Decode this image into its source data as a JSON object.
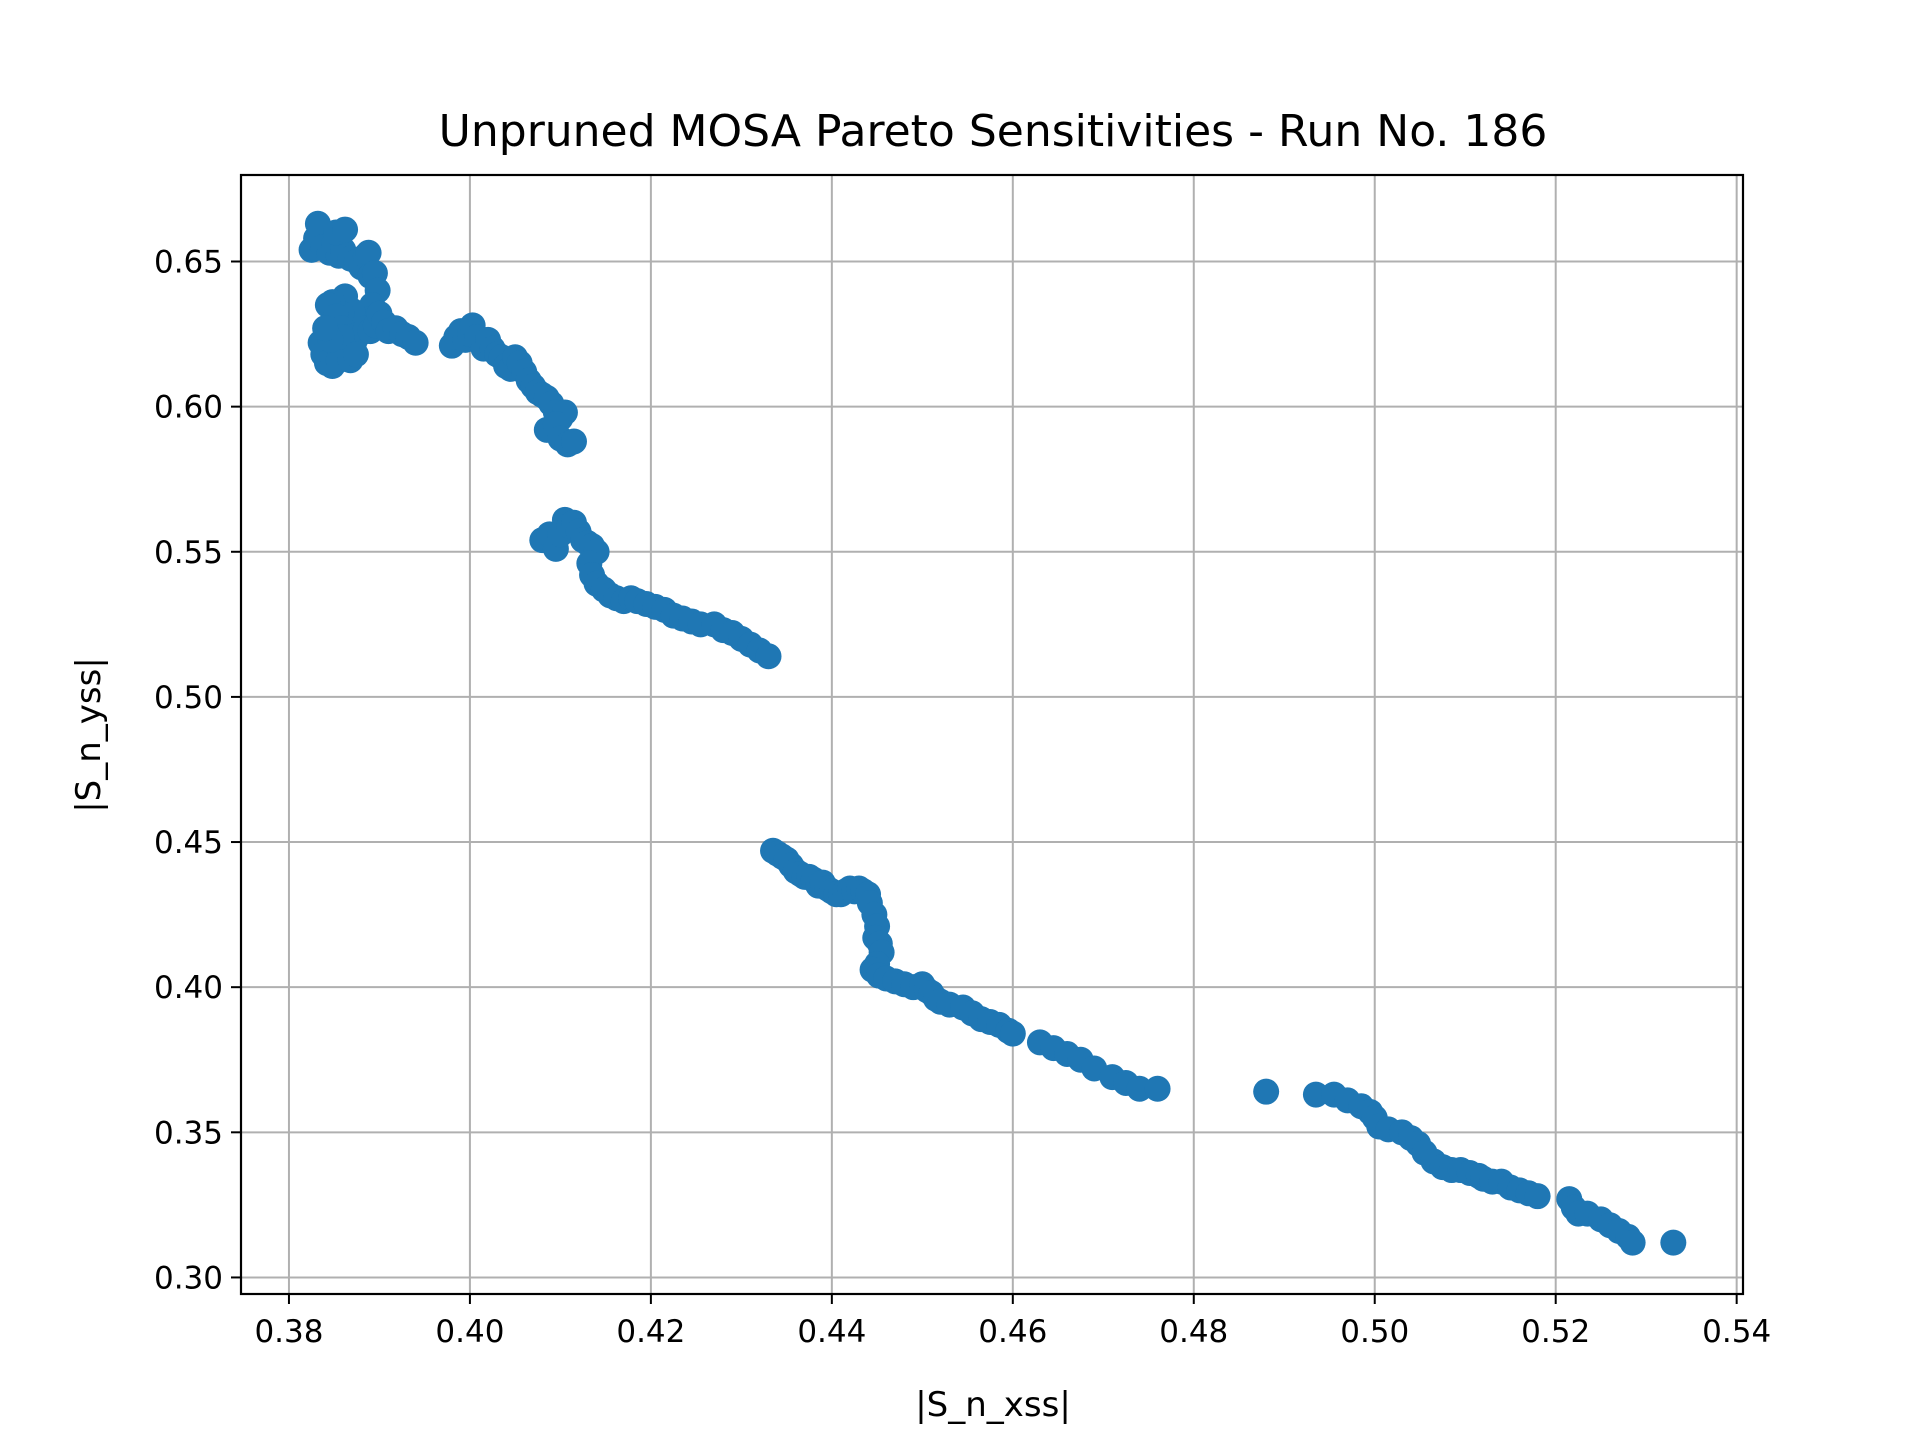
{
  "chart_data": {
    "type": "scatter",
    "title": "Unpruned MOSA Pareto Sensitivities - Run No. 186",
    "xlabel": "|S_n_xss|",
    "ylabel": "|S_n_yss|",
    "xlim": [
      0.3747,
      0.5407
    ],
    "ylim": [
      0.2943,
      0.6798
    ],
    "xticks": [
      0.38,
      0.4,
      0.42,
      0.44,
      0.46,
      0.48,
      0.5,
      0.52,
      0.54
    ],
    "xtick_labels": [
      "0.38",
      "0.40",
      "0.42",
      "0.44",
      "0.46",
      "0.48",
      "0.50",
      "0.52",
      "0.54"
    ],
    "yticks": [
      0.3,
      0.35,
      0.4,
      0.45,
      0.5,
      0.55,
      0.6,
      0.65
    ],
    "ytick_labels": [
      "0.30",
      "0.35",
      "0.40",
      "0.45",
      "0.50",
      "0.55",
      "0.60",
      "0.65"
    ],
    "grid": true,
    "legend": "none",
    "marker_color": "#1f77b4",
    "series": [
      {
        "points": [
          [
            0.3825,
            0.654
          ],
          [
            0.383,
            0.658
          ],
          [
            0.3832,
            0.663
          ],
          [
            0.3838,
            0.655
          ],
          [
            0.3845,
            0.653
          ],
          [
            0.385,
            0.656
          ],
          [
            0.3855,
            0.652
          ],
          [
            0.386,
            0.654
          ],
          [
            0.3852,
            0.66
          ],
          [
            0.3862,
            0.661
          ],
          [
            0.3868,
            0.651
          ],
          [
            0.3875,
            0.65
          ],
          [
            0.388,
            0.648
          ],
          [
            0.3885,
            0.652
          ],
          [
            0.3888,
            0.653
          ],
          [
            0.389,
            0.645
          ],
          [
            0.3895,
            0.646
          ],
          [
            0.3898,
            0.64
          ],
          [
            0.3892,
            0.635
          ],
          [
            0.3885,
            0.63
          ],
          [
            0.3878,
            0.628
          ],
          [
            0.387,
            0.633
          ],
          [
            0.3862,
            0.638
          ],
          [
            0.3858,
            0.632
          ],
          [
            0.3848,
            0.636
          ],
          [
            0.3843,
            0.635
          ],
          [
            0.3852,
            0.631
          ],
          [
            0.3858,
            0.627
          ],
          [
            0.3866,
            0.624
          ],
          [
            0.3872,
            0.622
          ],
          [
            0.3878,
            0.625
          ],
          [
            0.3885,
            0.627
          ],
          [
            0.389,
            0.626
          ],
          [
            0.3896,
            0.628
          ],
          [
            0.39,
            0.632
          ],
          [
            0.3905,
            0.629
          ],
          [
            0.391,
            0.626
          ],
          [
            0.3918,
            0.627
          ],
          [
            0.3925,
            0.625
          ],
          [
            0.3932,
            0.624
          ],
          [
            0.394,
            0.622
          ],
          [
            0.3835,
            0.622
          ],
          [
            0.3838,
            0.618
          ],
          [
            0.3842,
            0.615
          ],
          [
            0.3848,
            0.614
          ],
          [
            0.3855,
            0.616
          ],
          [
            0.3862,
            0.62
          ],
          [
            0.3858,
            0.624
          ],
          [
            0.3846,
            0.623
          ],
          [
            0.384,
            0.627
          ],
          [
            0.3868,
            0.616
          ],
          [
            0.3874,
            0.618
          ],
          [
            0.398,
            0.621
          ],
          [
            0.3985,
            0.624
          ],
          [
            0.399,
            0.626
          ],
          [
            0.3995,
            0.623
          ],
          [
            0.4,
            0.625
          ],
          [
            0.4003,
            0.628
          ],
          [
            0.4008,
            0.624
          ],
          [
            0.4015,
            0.62
          ],
          [
            0.402,
            0.623
          ],
          [
            0.4025,
            0.62
          ],
          [
            0.403,
            0.618
          ],
          [
            0.4035,
            0.617
          ],
          [
            0.404,
            0.614
          ],
          [
            0.4045,
            0.613
          ],
          [
            0.405,
            0.617
          ],
          [
            0.4055,
            0.615
          ],
          [
            0.406,
            0.612
          ],
          [
            0.4065,
            0.609
          ],
          [
            0.407,
            0.607
          ],
          [
            0.4075,
            0.605
          ],
          [
            0.408,
            0.604
          ],
          [
            0.4085,
            0.603
          ],
          [
            0.409,
            0.601
          ],
          [
            0.4095,
            0.598
          ],
          [
            0.41,
            0.596
          ],
          [
            0.4105,
            0.598
          ],
          [
            0.4085,
            0.592
          ],
          [
            0.4095,
            0.594
          ],
          [
            0.41,
            0.589
          ],
          [
            0.4108,
            0.587
          ],
          [
            0.4115,
            0.588
          ],
          [
            0.408,
            0.554
          ],
          [
            0.4088,
            0.556
          ],
          [
            0.4095,
            0.551
          ],
          [
            0.41,
            0.556
          ],
          [
            0.4105,
            0.561
          ],
          [
            0.411,
            0.559
          ],
          [
            0.4115,
            0.56
          ],
          [
            0.412,
            0.557
          ],
          [
            0.4125,
            0.554
          ],
          [
            0.413,
            0.553
          ],
          [
            0.4135,
            0.552
          ],
          [
            0.414,
            0.55
          ],
          [
            0.4132,
            0.546
          ],
          [
            0.4135,
            0.542
          ],
          [
            0.414,
            0.539
          ],
          [
            0.4148,
            0.537
          ],
          [
            0.4155,
            0.535
          ],
          [
            0.4162,
            0.534
          ],
          [
            0.417,
            0.533
          ],
          [
            0.4178,
            0.534
          ],
          [
            0.4185,
            0.533
          ],
          [
            0.4195,
            0.532
          ],
          [
            0.4205,
            0.531
          ],
          [
            0.4215,
            0.53
          ],
          [
            0.4225,
            0.528
          ],
          [
            0.4235,
            0.527
          ],
          [
            0.4245,
            0.526
          ],
          [
            0.4255,
            0.525
          ],
          [
            0.427,
            0.525
          ],
          [
            0.428,
            0.523
          ],
          [
            0.429,
            0.522
          ],
          [
            0.43,
            0.52
          ],
          [
            0.431,
            0.518
          ],
          [
            0.432,
            0.516
          ],
          [
            0.433,
            0.514
          ],
          [
            0.4335,
            0.447
          ],
          [
            0.434,
            0.446
          ],
          [
            0.4345,
            0.445
          ],
          [
            0.435,
            0.444
          ],
          [
            0.4355,
            0.442
          ],
          [
            0.436,
            0.44
          ],
          [
            0.4365,
            0.439
          ],
          [
            0.437,
            0.438
          ],
          [
            0.4375,
            0.438
          ],
          [
            0.438,
            0.437
          ],
          [
            0.4385,
            0.435
          ],
          [
            0.439,
            0.436
          ],
          [
            0.4395,
            0.434
          ],
          [
            0.44,
            0.433
          ],
          [
            0.4405,
            0.432
          ],
          [
            0.441,
            0.432
          ],
          [
            0.4415,
            0.433
          ],
          [
            0.442,
            0.434
          ],
          [
            0.4425,
            0.433
          ],
          [
            0.443,
            0.434
          ],
          [
            0.4435,
            0.433
          ],
          [
            0.444,
            0.432
          ],
          [
            0.4442,
            0.429
          ],
          [
            0.4447,
            0.425
          ],
          [
            0.445,
            0.421
          ],
          [
            0.4448,
            0.417
          ],
          [
            0.4453,
            0.415
          ],
          [
            0.4455,
            0.412
          ],
          [
            0.445,
            0.408
          ],
          [
            0.4445,
            0.406
          ],
          [
            0.4452,
            0.404
          ],
          [
            0.446,
            0.403
          ],
          [
            0.447,
            0.402
          ],
          [
            0.448,
            0.401
          ],
          [
            0.449,
            0.4
          ],
          [
            0.45,
            0.401
          ],
          [
            0.4505,
            0.399
          ],
          [
            0.451,
            0.398
          ],
          [
            0.4515,
            0.396
          ],
          [
            0.452,
            0.395
          ],
          [
            0.453,
            0.394
          ],
          [
            0.4545,
            0.393
          ],
          [
            0.4555,
            0.391
          ],
          [
            0.4565,
            0.389
          ],
          [
            0.4575,
            0.388
          ],
          [
            0.4585,
            0.387
          ],
          [
            0.4595,
            0.385
          ],
          [
            0.46,
            0.384
          ],
          [
            0.463,
            0.381
          ],
          [
            0.4645,
            0.379
          ],
          [
            0.466,
            0.377
          ],
          [
            0.4675,
            0.375
          ],
          [
            0.469,
            0.372
          ],
          [
            0.471,
            0.369
          ],
          [
            0.4725,
            0.367
          ],
          [
            0.474,
            0.365
          ],
          [
            0.476,
            0.365
          ],
          [
            0.488,
            0.364
          ],
          [
            0.4935,
            0.363
          ],
          [
            0.4955,
            0.363
          ],
          [
            0.497,
            0.361
          ],
          [
            0.4985,
            0.359
          ],
          [
            0.4995,
            0.357
          ],
          [
            0.5,
            0.355
          ],
          [
            0.5005,
            0.352
          ],
          [
            0.5015,
            0.351
          ],
          [
            0.503,
            0.35
          ],
          [
            0.504,
            0.348
          ],
          [
            0.5048,
            0.346
          ],
          [
            0.5055,
            0.343
          ],
          [
            0.5065,
            0.34
          ],
          [
            0.5075,
            0.338
          ],
          [
            0.5085,
            0.337
          ],
          [
            0.5095,
            0.337
          ],
          [
            0.5105,
            0.336
          ],
          [
            0.5115,
            0.335
          ],
          [
            0.512,
            0.334
          ],
          [
            0.513,
            0.333
          ],
          [
            0.514,
            0.333
          ],
          [
            0.515,
            0.331
          ],
          [
            0.516,
            0.33
          ],
          [
            0.517,
            0.329
          ],
          [
            0.518,
            0.328
          ],
          [
            0.5215,
            0.327
          ],
          [
            0.522,
            0.324
          ],
          [
            0.5225,
            0.322
          ],
          [
            0.5235,
            0.322
          ],
          [
            0.525,
            0.32
          ],
          [
            0.526,
            0.318
          ],
          [
            0.527,
            0.316
          ],
          [
            0.528,
            0.314
          ],
          [
            0.5285,
            0.312
          ],
          [
            0.533,
            0.312
          ]
        ]
      }
    ]
  }
}
